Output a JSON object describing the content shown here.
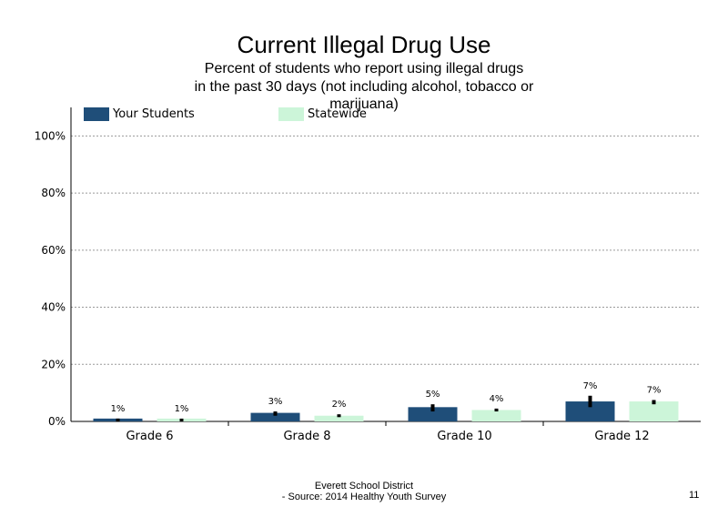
{
  "title": "Current Illegal Drug Use",
  "subtitle_lines": [
    "Percent of students who report using illegal drugs",
    "in the past 30 days (not including alcohol, tobacco or",
    "marijuana)"
  ],
  "footer": {
    "line1": "Everett School District",
    "line2": "- Source: 2014 Healthy Youth Survey",
    "page_number": "11"
  },
  "chart_data": {
    "type": "bar",
    "categories": [
      "Grade 6",
      "Grade 8",
      "Grade 10",
      "Grade 12"
    ],
    "series": [
      {
        "name": "Your Students",
        "color": "#1f4e79",
        "values": [
          1,
          3,
          5,
          7
        ],
        "labels": [
          "1%",
          "3%",
          "5%",
          "7%"
        ],
        "error": [
          [
            0,
            1
          ],
          [
            2,
            3.5
          ],
          [
            3.5,
            6
          ],
          [
            5,
            9
          ]
        ]
      },
      {
        "name": "Statewide",
        "color": "#ccf5d9",
        "values": [
          1,
          2,
          4,
          7
        ],
        "labels": [
          "1%",
          "2%",
          "4%",
          "7%"
        ],
        "error": [
          [
            0.5,
            0.5
          ],
          [
            1.5,
            2.5
          ],
          [
            3.5,
            4.5
          ],
          [
            6,
            7.5
          ]
        ]
      }
    ],
    "ylim": [
      0,
      110
    ],
    "yticks": [
      0,
      20,
      40,
      60,
      80,
      100
    ],
    "ytick_labels": [
      "0%",
      "20%",
      "40%",
      "60%",
      "80%",
      "100%"
    ],
    "grid": "horizontal-dotted",
    "legend_position": "top-left"
  }
}
